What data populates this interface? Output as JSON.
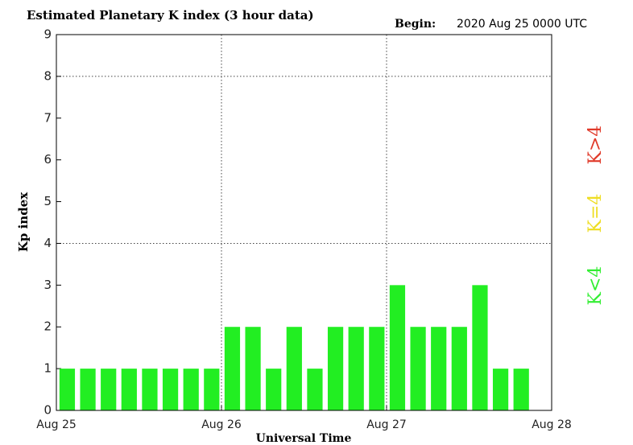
{
  "chart_data": {
    "type": "bar",
    "title": "Estimated Planetary K index (3 hour data)",
    "begin_label": "Begin:",
    "begin_value": "2020 Aug 25 0000 UTC",
    "x_label": "Universal Time",
    "y_label": "Kp index",
    "values": [
      1,
      1,
      1,
      1,
      1,
      1,
      1,
      1,
      2,
      2,
      1,
      2,
      1,
      2,
      2,
      2,
      3,
      2,
      2,
      2,
      3,
      1,
      1,
      null
    ],
    "color": "#22ee22",
    "xlim": [
      0,
      24
    ],
    "xticks": [
      {
        "value": 0,
        "label": "Aug 25"
      },
      {
        "value": 8,
        "label": "Aug 26"
      },
      {
        "value": 16,
        "label": "Aug 27"
      },
      {
        "value": 24,
        "label": "Aug 28"
      }
    ],
    "ylim": [
      0,
      9
    ],
    "yticks": [
      0,
      1,
      2,
      3,
      4,
      5,
      6,
      7,
      8,
      9
    ],
    "ygrid": [
      4,
      8
    ],
    "legend": [
      {
        "label": "K<4",
        "color": "#33ee33"
      },
      {
        "label": "K=4",
        "color": "#eedd22"
      },
      {
        "label": "K>4",
        "color": "#e03a2a"
      }
    ]
  }
}
